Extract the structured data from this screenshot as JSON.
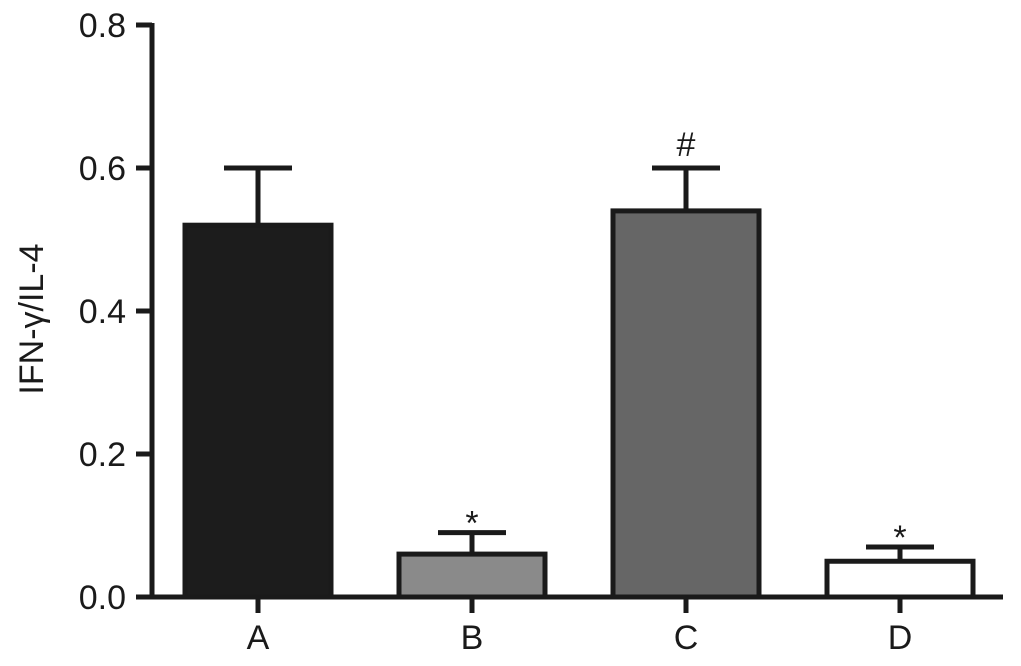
{
  "chart_data": {
    "type": "bar",
    "title": "",
    "xlabel": "",
    "ylabel": "IFN-γ/IL-4",
    "ylim": [
      0,
      0.8
    ],
    "yticks": [
      "0.0",
      "0.2",
      "0.4",
      "0.6",
      "0.8"
    ],
    "grid": false,
    "categories": [
      "A",
      "B",
      "C",
      "D"
    ],
    "values": [
      0.52,
      0.06,
      0.54,
      0.05
    ],
    "errors": [
      0.08,
      0.03,
      0.06,
      0.02
    ],
    "annotations": [
      "",
      "*",
      "#",
      "*"
    ],
    "bar_colors": [
      "#1c1c1c",
      "#8a8a8a",
      "#666666",
      "#ffffff"
    ],
    "edge_color": "#1a1a1a"
  }
}
